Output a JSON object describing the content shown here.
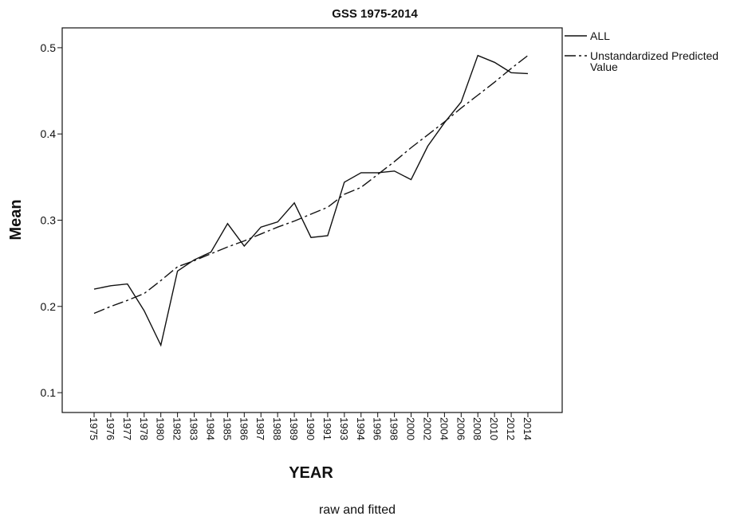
{
  "chart_data": {
    "type": "line",
    "title": "GSS 1975-2014",
    "x_label": "YEAR",
    "y_label": "Mean",
    "caption": "raw and fitted",
    "categories": [
      "1975",
      "1976",
      "1977",
      "1978",
      "1980",
      "1982",
      "1983",
      "1984",
      "1985",
      "1986",
      "1987",
      "1988",
      "1989",
      "1990",
      "1991",
      "1993",
      "1994",
      "1996",
      "1998",
      "2000",
      "2002",
      "2004",
      "2006",
      "2008",
      "2010",
      "2012",
      "2014"
    ],
    "series": [
      {
        "name": "ALL",
        "color": "#111111",
        "style": "solid",
        "values": [
          0.22,
          0.224,
          0.226,
          0.195,
          0.155,
          0.241,
          0.254,
          0.263,
          0.296,
          0.27,
          0.292,
          0.298,
          0.32,
          0.28,
          0.282,
          0.344,
          0.355,
          0.355,
          0.357,
          0.347,
          0.386,
          0.413,
          0.437,
          0.491,
          0.483,
          0.471,
          0.47
        ]
      },
      {
        "name": "Unstandardized Predicted Value",
        "color": "#111111",
        "style": "dashdot",
        "values": [
          0.192,
          0.2,
          0.207,
          0.215,
          0.23,
          0.246,
          0.253,
          0.261,
          0.269,
          0.276,
          0.284,
          0.292,
          0.299,
          0.307,
          0.315,
          0.33,
          0.338,
          0.353,
          0.368,
          0.384,
          0.399,
          0.414,
          0.43,
          0.445,
          0.46,
          0.476,
          0.491
        ]
      }
    ],
    "ylim": [
      0.077,
      0.523
    ],
    "yticks": [
      0.1,
      0.2,
      0.3,
      0.4,
      0.5
    ]
  }
}
